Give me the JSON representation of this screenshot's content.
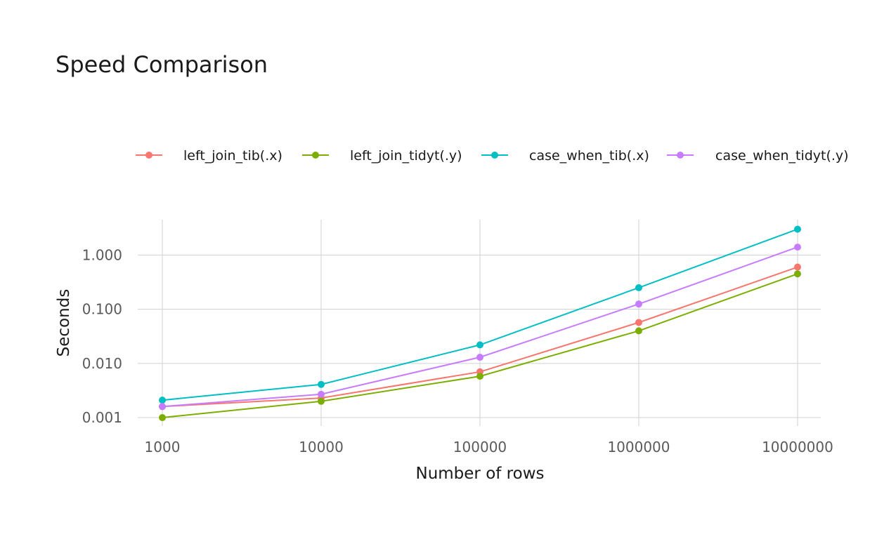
{
  "chart_data": {
    "type": "line",
    "title": "Speed Comparison",
    "xlabel": "Number of rows",
    "ylabel": "Seconds",
    "x_scale": "log10",
    "y_scale": "log10",
    "x": [
      1000,
      10000,
      100000,
      1000000,
      10000000
    ],
    "x_tick_labels": [
      "1000",
      "10000",
      "100000",
      "1000000",
      "10000000"
    ],
    "y_ticks": [
      0.001,
      0.01,
      0.1,
      1.0
    ],
    "y_tick_labels": [
      "0.001",
      "0.010",
      "0.100",
      "1.000"
    ],
    "xlim": [
      700,
      14000000
    ],
    "ylim": [
      0.0007,
      4.5
    ],
    "grid": true,
    "legend_position": "top",
    "series": [
      {
        "name": "left_join_tib(.x)",
        "color": "#F8766D",
        "values": [
          0.0016,
          0.0023,
          0.007,
          0.057,
          0.6
        ]
      },
      {
        "name": "left_join_tidyt(.y)",
        "color": "#7CAE00",
        "values": [
          0.001,
          0.002,
          0.0058,
          0.04,
          0.45
        ]
      },
      {
        "name": "case_when_tib(.x)",
        "color": "#00BFC4",
        "values": [
          0.0021,
          0.0041,
          0.022,
          0.25,
          3.0
        ]
      },
      {
        "name": "case_when_tidyt(.y)",
        "color": "#C77CFF",
        "values": [
          0.0016,
          0.0027,
          0.013,
          0.125,
          1.4
        ]
      }
    ]
  }
}
